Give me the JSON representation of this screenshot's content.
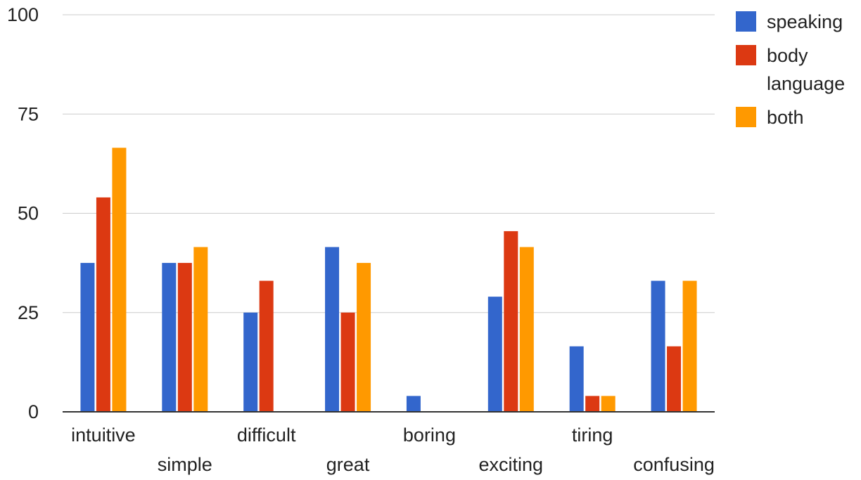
{
  "chart_data": {
    "type": "bar",
    "categories": [
      "intuitive",
      "simple",
      "difficult",
      "great",
      "boring",
      "exciting",
      "tiring",
      "confusing"
    ],
    "series": [
      {
        "name": "speaking",
        "color": "#3366cc",
        "values": [
          37.5,
          37.5,
          25,
          41.5,
          4,
          29,
          16.5,
          33
        ]
      },
      {
        "name": "body language",
        "color": "#dc3912",
        "values": [
          54,
          37.5,
          33,
          25,
          0,
          45.5,
          4,
          16.5
        ]
      },
      {
        "name": "both",
        "color": "#ff9900",
        "values": [
          66.5,
          41.5,
          0,
          37.5,
          0,
          41.5,
          4,
          33
        ]
      }
    ],
    "legend": {
      "position": "top-right",
      "entries": [
        {
          "lines": [
            "speaking"
          ],
          "color": "#3366cc"
        },
        {
          "lines": [
            "body",
            "language"
          ],
          "color": "#dc3912"
        },
        {
          "lines": [
            "both"
          ],
          "color": "#ff9900"
        }
      ]
    },
    "y_ticks": [
      "0",
      "25",
      "50",
      "75",
      "100"
    ],
    "ylim": [
      0,
      100
    ],
    "grid": true,
    "title": "",
    "xlabel": "",
    "ylabel": ""
  }
}
